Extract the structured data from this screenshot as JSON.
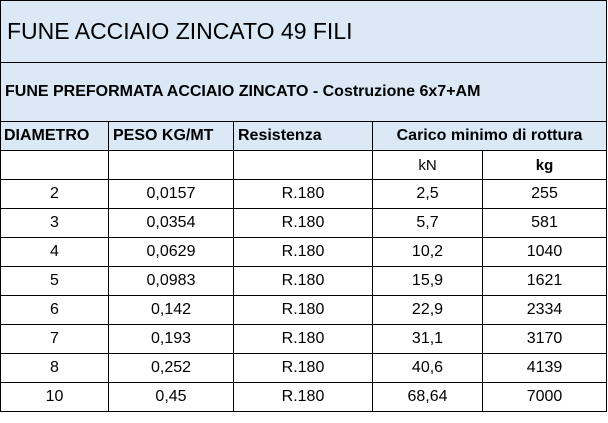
{
  "title": "FUNE ACCIAIO ZINCATO 49 FILI",
  "subtitle": "FUNE PREFORMATA ACCIAIO ZINCATO - Costruzione  6x7+AM",
  "table": {
    "headers": [
      "DIAMETRO",
      "PESO KG/MT",
      "Resistenza",
      "Carico minimo di rottura"
    ],
    "subheaders": [
      "kN",
      "kg"
    ],
    "rows": [
      [
        "2",
        "0,0157",
        "R.180",
        "2,5",
        "255"
      ],
      [
        "3",
        "0,0354",
        "R.180",
        "5,7",
        "581"
      ],
      [
        "4",
        "0,0629",
        "R.180",
        "10,2",
        "1040"
      ],
      [
        "5",
        "0,0983",
        "R.180",
        "15,9",
        "1621"
      ],
      [
        "6",
        "0,142",
        "R.180",
        "22,9",
        "2334"
      ],
      [
        "7",
        "0,193",
        "R.180",
        "31,1",
        "3170"
      ],
      [
        "8",
        "0,252",
        "R.180",
        "40,6",
        "4139"
      ],
      [
        "10",
        "0,45",
        "R.180",
        "68,64",
        "7000"
      ]
    ]
  }
}
